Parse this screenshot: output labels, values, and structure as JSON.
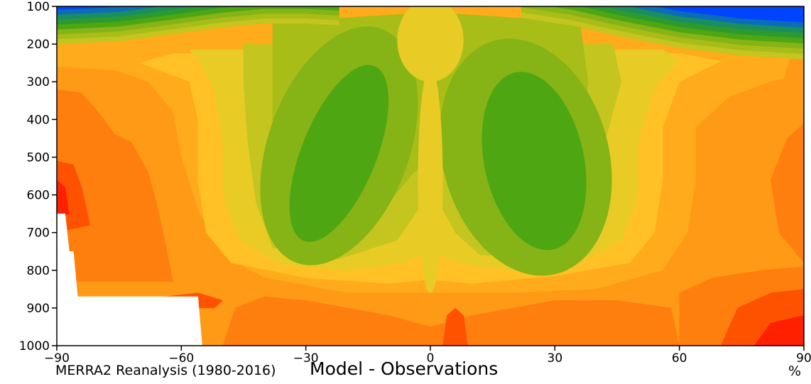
{
  "chart_data": {
    "type": "heatmap",
    "subtype": "filled-contour",
    "title": "Model - Observations",
    "left_caption": "MERRA2 Reanalysis (1980-2016)",
    "units_label": "%",
    "x_ticks": [
      -90,
      -60,
      -30,
      0,
      30,
      60,
      90
    ],
    "x_tick_labels": [
      "−90",
      "−60",
      "−30",
      "0",
      "30",
      "60",
      "90"
    ],
    "xlim": [
      -90,
      90
    ],
    "y_ticks": [
      100,
      200,
      300,
      400,
      500,
      600,
      700,
      800,
      900,
      1000
    ],
    "y_tick_labels": [
      "100",
      "200",
      "300",
      "400",
      "500",
      "600",
      "700",
      "800",
      "900",
      "1000"
    ],
    "ylim": [
      1000,
      100
    ],
    "y_inverted": true,
    "colors": {
      "c0": "#ff2000",
      "c1": "#ff5200",
      "c2": "#ff7f0e",
      "c3": "#ff9a17",
      "c4": "#ffab1c",
      "c5": "#ffc125",
      "c6": "#e9cb26",
      "c7": "#c5c51f",
      "c8": "#a8bd18",
      "c9": "#86b315",
      "c10": "#4ea612",
      "c11": "#2d9a2e",
      "c12": "#1a8e60",
      "c13": "#0b6db8",
      "c14": "#0044ff"
    },
    "missing_region_color": "#ffffff"
  }
}
